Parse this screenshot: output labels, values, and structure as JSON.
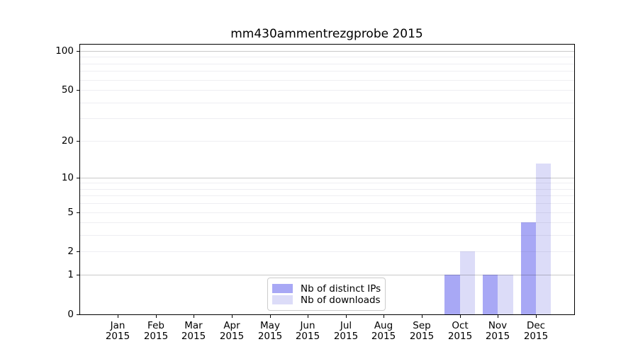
{
  "chart_data": {
    "type": "bar",
    "title": "mm430ammentrezgprobe 2015",
    "categories": [
      {
        "month": "Jan",
        "year": "2015"
      },
      {
        "month": "Feb",
        "year": "2015"
      },
      {
        "month": "Mar",
        "year": "2015"
      },
      {
        "month": "Apr",
        "year": "2015"
      },
      {
        "month": "May",
        "year": "2015"
      },
      {
        "month": "Jun",
        "year": "2015"
      },
      {
        "month": "Jul",
        "year": "2015"
      },
      {
        "month": "Aug",
        "year": "2015"
      },
      {
        "month": "Sep",
        "year": "2015"
      },
      {
        "month": "Oct",
        "year": "2015"
      },
      {
        "month": "Nov",
        "year": "2015"
      },
      {
        "month": "Dec",
        "year": "2015"
      }
    ],
    "series": [
      {
        "name": "Nb of distinct IPs",
        "color": "#a8a8f5",
        "values": [
          0,
          0,
          0,
          0,
          0,
          0,
          0,
          0,
          0,
          1,
          1,
          4
        ]
      },
      {
        "name": "Nb of downloads",
        "color": "#dcdcf8",
        "values": [
          0,
          0,
          0,
          0,
          0,
          0,
          0,
          0,
          0,
          2,
          1,
          13
        ]
      }
    ],
    "y_ticks": [
      0,
      1,
      2,
      5,
      10,
      20,
      50,
      100
    ],
    "scale": "log1p",
    "ylim": [
      0,
      113.4
    ],
    "grid": true,
    "major_grid_values": [
      1,
      10,
      100
    ],
    "minor_grid_values": [
      2,
      3,
      4,
      5,
      6,
      7,
      8,
      9,
      20,
      30,
      40,
      50,
      60,
      70,
      80,
      90
    ],
    "legend_position": "bottom-center"
  }
}
